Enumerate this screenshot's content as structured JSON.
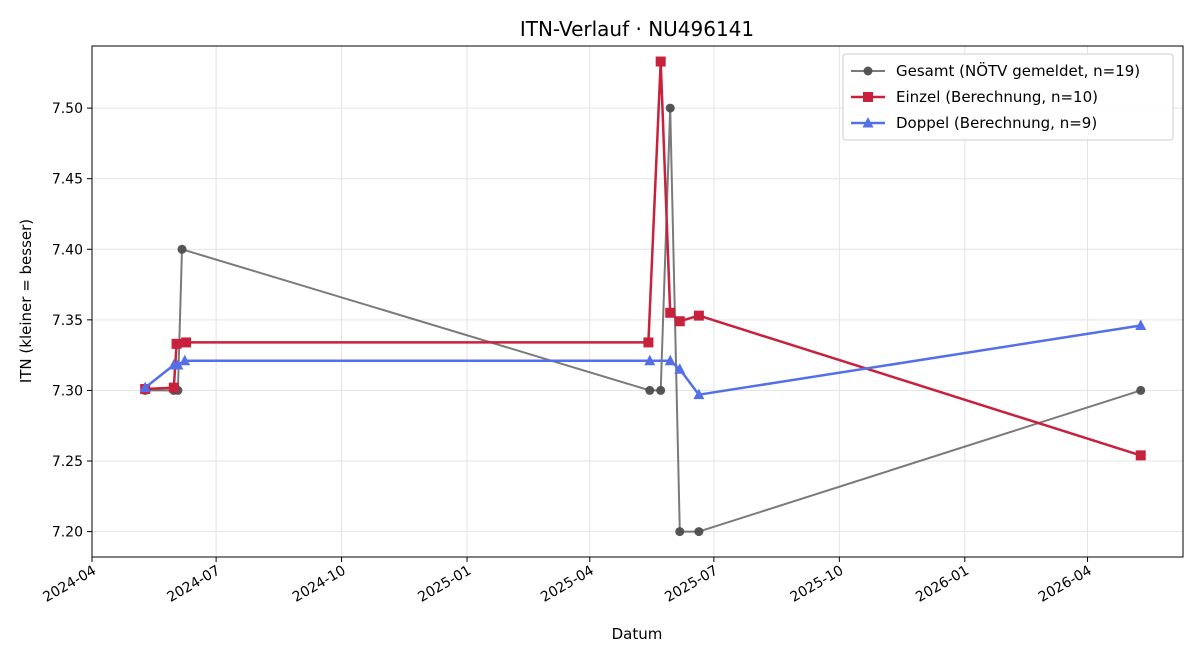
{
  "chart_data": {
    "type": "line",
    "title": "ITN-Verlauf · NU496141",
    "xlabel": "Datum",
    "ylabel": "ITN  (kleiner = besser)",
    "xlim": [
      "2024-04-01",
      "2026-06-10"
    ],
    "ylim": [
      7.182,
      7.544
    ],
    "x_ticks": [
      "2024-04",
      "2024-07",
      "2024-10",
      "2025-01",
      "2025-04",
      "2025-07",
      "2025-10",
      "2026-01",
      "2026-04"
    ],
    "y_ticks": [
      "7.20",
      "7.25",
      "7.30",
      "7.35",
      "7.40",
      "7.45",
      "7.50"
    ],
    "grid": true,
    "legend_position": "top-right",
    "series": [
      {
        "name": "Gesamt (NÖTV gemeldet, n=19)",
        "color": "#4d4d4d",
        "marker": "circle",
        "points": [
          {
            "x": "2024-05-10",
            "y": 7.3
          },
          {
            "x": "2024-05-31",
            "y": 7.3
          },
          {
            "x": "2024-06-03",
            "y": 7.3
          },
          {
            "x": "2024-06-06",
            "y": 7.4
          },
          {
            "x": "2025-05-15",
            "y": 7.3
          },
          {
            "x": "2025-05-23",
            "y": 7.3
          },
          {
            "x": "2025-05-30",
            "y": 7.5
          },
          {
            "x": "2025-06-06",
            "y": 7.2
          },
          {
            "x": "2025-06-20",
            "y": 7.2
          },
          {
            "x": "2026-05-10",
            "y": 7.3
          }
        ]
      },
      {
        "name": "Einzel (Berechnung, n=10)",
        "color": "#c8213c",
        "marker": "square",
        "points": [
          {
            "x": "2024-05-10",
            "y": 7.301
          },
          {
            "x": "2024-05-31",
            "y": 7.302
          },
          {
            "x": "2024-06-02",
            "y": 7.333
          },
          {
            "x": "2024-06-09",
            "y": 7.334
          },
          {
            "x": "2025-05-14",
            "y": 7.334
          },
          {
            "x": "2025-05-23",
            "y": 7.533
          },
          {
            "x": "2025-05-30",
            "y": 7.355
          },
          {
            "x": "2025-06-06",
            "y": 7.349
          },
          {
            "x": "2025-06-20",
            "y": 7.353
          },
          {
            "x": "2026-05-10",
            "y": 7.254
          }
        ]
      },
      {
        "name": "Doppel (Berechnung, n=9)",
        "color": "#5470e8",
        "marker": "triangle",
        "points": [
          {
            "x": "2024-05-10",
            "y": 7.302
          },
          {
            "x": "2024-05-31",
            "y": 7.318
          },
          {
            "x": "2024-06-03",
            "y": 7.318
          },
          {
            "x": "2024-06-08",
            "y": 7.321
          },
          {
            "x": "2025-05-15",
            "y": 7.321
          },
          {
            "x": "2025-05-30",
            "y": 7.321
          },
          {
            "x": "2025-06-06",
            "y": 7.315
          },
          {
            "x": "2025-06-20",
            "y": 7.297
          },
          {
            "x": "2026-05-10",
            "y": 7.346
          }
        ]
      }
    ]
  }
}
